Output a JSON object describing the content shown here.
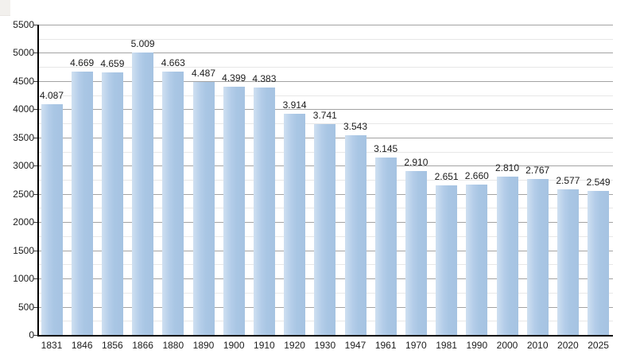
{
  "chart_data": {
    "type": "bar",
    "title": "",
    "xlabel": "",
    "ylabel": "",
    "categories": [
      "1831",
      "1846",
      "1856",
      "1866",
      "1880",
      "1890",
      "1900",
      "1910",
      "1920",
      "1930",
      "1947",
      "1961",
      "1970",
      "1981",
      "1990",
      "2000",
      "2010",
      "2020",
      "2025"
    ],
    "values": [
      4087,
      4669,
      4659,
      5009,
      4663,
      4487,
      4399,
      4383,
      3914,
      3741,
      3543,
      3145,
      2910,
      2651,
      2660,
      2810,
      2767,
      2577,
      2549
    ],
    "value_labels": [
      "4.087",
      "4.669",
      "4.659",
      "5.009",
      "4.663",
      "4.487",
      "4.399",
      "4.383",
      "3.914",
      "3.741",
      "3.543",
      "3.145",
      "2.910",
      "2.651",
      "2.660",
      "2.810",
      "2.767",
      "2.577",
      "2.549"
    ],
    "ylim": [
      0,
      5500
    ],
    "ytick_step": 500,
    "yminor_step": 250,
    "ytick_labels": [
      "0",
      "500",
      "1000",
      "1500",
      "2000",
      "2500",
      "3000",
      "3500",
      "4000",
      "4500",
      "5000",
      "5500"
    ],
    "grid": true,
    "legend_position": "none",
    "colors": {
      "bar_fill": "#a9c6e4",
      "bar_fill_highlight": "#cfe0f1",
      "major_gridline": "#a3a3a3",
      "minor_gridline": "#e7e7e7",
      "axis": "#000000",
      "text": "#1c1c1c",
      "background": "#ffffff"
    }
  }
}
